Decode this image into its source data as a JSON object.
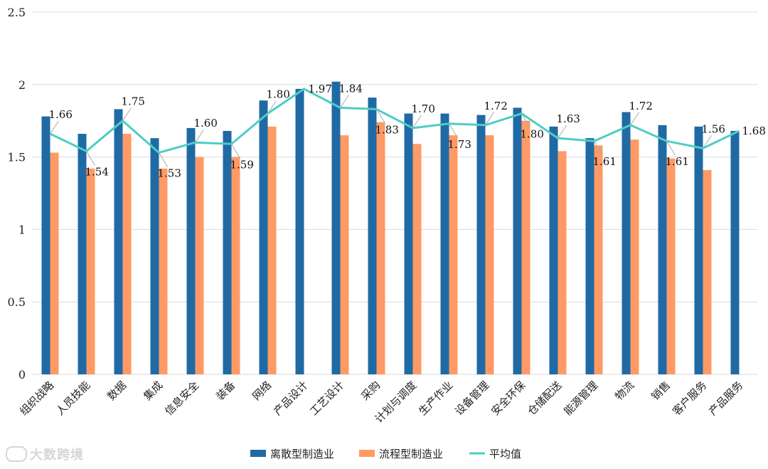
{
  "chart_data": {
    "type": "bar",
    "categories": [
      "组织战略",
      "人员技能",
      "数据",
      "集成",
      "信息安全",
      "装备",
      "网络",
      "产品设计",
      "工艺设计",
      "采购",
      "计划与调度",
      "生产作业",
      "设备管理",
      "安全环保",
      "仓储配送",
      "能源管理",
      "物流",
      "销售",
      "客户服务",
      "产品服务"
    ],
    "series": [
      {
        "name": "离散型制造业",
        "type": "bar",
        "color": "#1F6AA5",
        "values": [
          1.78,
          1.66,
          1.83,
          1.63,
          1.7,
          1.68,
          1.89,
          1.97,
          2.02,
          1.91,
          1.8,
          1.8,
          1.79,
          1.84,
          1.71,
          1.63,
          1.81,
          1.72,
          1.71,
          1.68
        ]
      },
      {
        "name": "流程型制造业",
        "type": "bar",
        "color": "#FF9A66",
        "values": [
          1.53,
          1.42,
          1.66,
          1.42,
          1.5,
          1.5,
          1.71,
          null,
          1.65,
          1.74,
          1.59,
          1.65,
          1.65,
          1.75,
          1.54,
          1.58,
          1.62,
          1.49,
          1.41,
          null
        ]
      },
      {
        "name": "平均值",
        "type": "line",
        "color": "#4ECDC4",
        "values": [
          1.66,
          1.54,
          1.75,
          1.53,
          1.6,
          1.59,
          1.8,
          1.97,
          1.84,
          1.83,
          1.7,
          1.73,
          1.72,
          1.8,
          1.63,
          1.61,
          1.72,
          1.61,
          1.56,
          1.68
        ],
        "labels": [
          "1.66",
          "1.54",
          "1.75",
          "1.53",
          "1.60",
          "1.59",
          "1.80",
          "1.97",
          "1.84",
          "1.83",
          "1.70",
          "1.73",
          "1.72",
          "1.80",
          "1.63",
          "1.61",
          "1.72",
          "1.61",
          "1.56",
          "1.68"
        ]
      }
    ],
    "yticks": [
      "0",
      "0.5",
      "1",
      "1.5",
      "2",
      "2.5"
    ],
    "ylim": [
      0,
      2.5
    ],
    "grid": true,
    "legend": "bottom"
  },
  "watermark": "大数跨境"
}
